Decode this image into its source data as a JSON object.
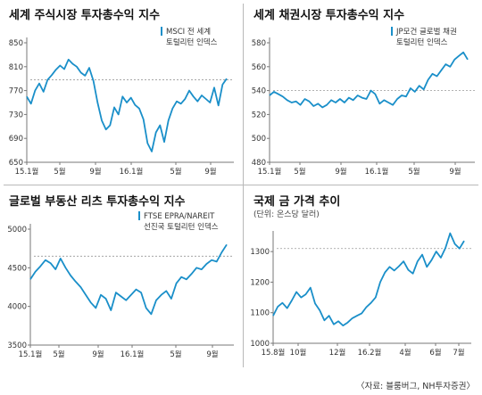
{
  "source": "〈자료: 블룸버그, NH투자증권〉",
  "colors": {
    "line": "#1a8fc9",
    "dash": "#999999",
    "axis": "#777777"
  },
  "chart_data": [
    {
      "type": "line",
      "title": "세계 주식시장 투자총수익 지수",
      "legend": [
        "MSCI 전 세계",
        "토털리턴 인덱스"
      ],
      "x_tick_labels": [
        "15.1월",
        "5월",
        "9월",
        "16.1월",
        "5월",
        "9월"
      ],
      "y_tick_labels": [
        "850",
        "810",
        "770",
        "730",
        "690",
        "650"
      ],
      "ylim": [
        650,
        850
      ],
      "reference_line": 788,
      "series": [
        {
          "values": [
            760,
            748,
            770,
            782,
            768,
            788,
            796,
            805,
            812,
            806,
            822,
            815,
            810,
            800,
            795,
            808,
            786,
            750,
            720,
            705,
            712,
            742,
            730,
            760,
            750,
            758,
            746,
            740,
            722,
            682,
            668,
            700,
            712,
            684,
            720,
            740,
            752,
            748,
            756,
            770,
            760,
            752,
            762,
            756,
            750,
            775,
            745,
            780,
            790
          ]
        }
      ]
    },
    {
      "type": "line",
      "title": "세계 채권시장 투자총수익 지수",
      "legend": [
        "JP모건 글로벌 채권",
        "토털리턴 인덱스"
      ],
      "x_tick_labels": [
        "15.1월",
        "5월",
        "9월",
        "16.1월",
        "5월",
        "9월"
      ],
      "y_tick_labels": [
        "580",
        "560",
        "540",
        "520",
        "500",
        "480"
      ],
      "ylim": [
        480,
        580
      ],
      "reference_line": 540,
      "series": [
        {
          "values": [
            536,
            539,
            537,
            535,
            532,
            530,
            531,
            528,
            533,
            531,
            527,
            529,
            526,
            528,
            532,
            530,
            533,
            530,
            534,
            532,
            536,
            534,
            533,
            540,
            537,
            529,
            532,
            530,
            528,
            533,
            536,
            535,
            542,
            539,
            544,
            541,
            549,
            554,
            552,
            557,
            562,
            560,
            566,
            569,
            572,
            566
          ]
        }
      ]
    },
    {
      "type": "line",
      "title": "글로벌 부동산 리츠 투자총수익 지수",
      "legend": [
        "FTSE EPRA/NAREIT",
        "선진국 토털리턴 인덱스"
      ],
      "x_tick_labels": [
        "15.1월",
        "5월",
        "9월",
        "16.1월",
        "5월",
        "9월"
      ],
      "y_tick_labels": [
        "5000",
        "4500",
        "4000",
        "3500"
      ],
      "ylim": [
        3500,
        5000
      ],
      "reference_line": 4650,
      "series": [
        {
          "values": [
            4350,
            4450,
            4520,
            4600,
            4560,
            4480,
            4620,
            4500,
            4400,
            4320,
            4250,
            4150,
            4050,
            3980,
            4150,
            4100,
            3950,
            4180,
            4130,
            4080,
            4150,
            4220,
            4180,
            3980,
            3900,
            4080,
            4150,
            4200,
            4100,
            4300,
            4380,
            4350,
            4420,
            4500,
            4480,
            4550,
            4600,
            4580,
            4700,
            4800
          ]
        }
      ]
    },
    {
      "type": "line",
      "title": "국제 금 가격 추이",
      "subtitle": "(단위: 온스당 달러)",
      "x_tick_labels": [
        "15.8월",
        "10월",
        "12월",
        "16.2월",
        "4월",
        "6월",
        "7월"
      ],
      "y_tick_labels": [
        "1300",
        "1200",
        "1100",
        "1000"
      ],
      "ylim": [
        1000,
        1350
      ],
      "reference_line": 1310,
      "series": [
        {
          "values": [
            1090,
            1120,
            1132,
            1115,
            1140,
            1168,
            1150,
            1160,
            1182,
            1130,
            1108,
            1075,
            1090,
            1062,
            1072,
            1058,
            1068,
            1082,
            1090,
            1098,
            1118,
            1132,
            1150,
            1200,
            1232,
            1250,
            1238,
            1252,
            1268,
            1240,
            1228,
            1268,
            1290,
            1250,
            1272,
            1300,
            1280,
            1312,
            1360,
            1325,
            1310,
            1335
          ]
        }
      ]
    }
  ]
}
